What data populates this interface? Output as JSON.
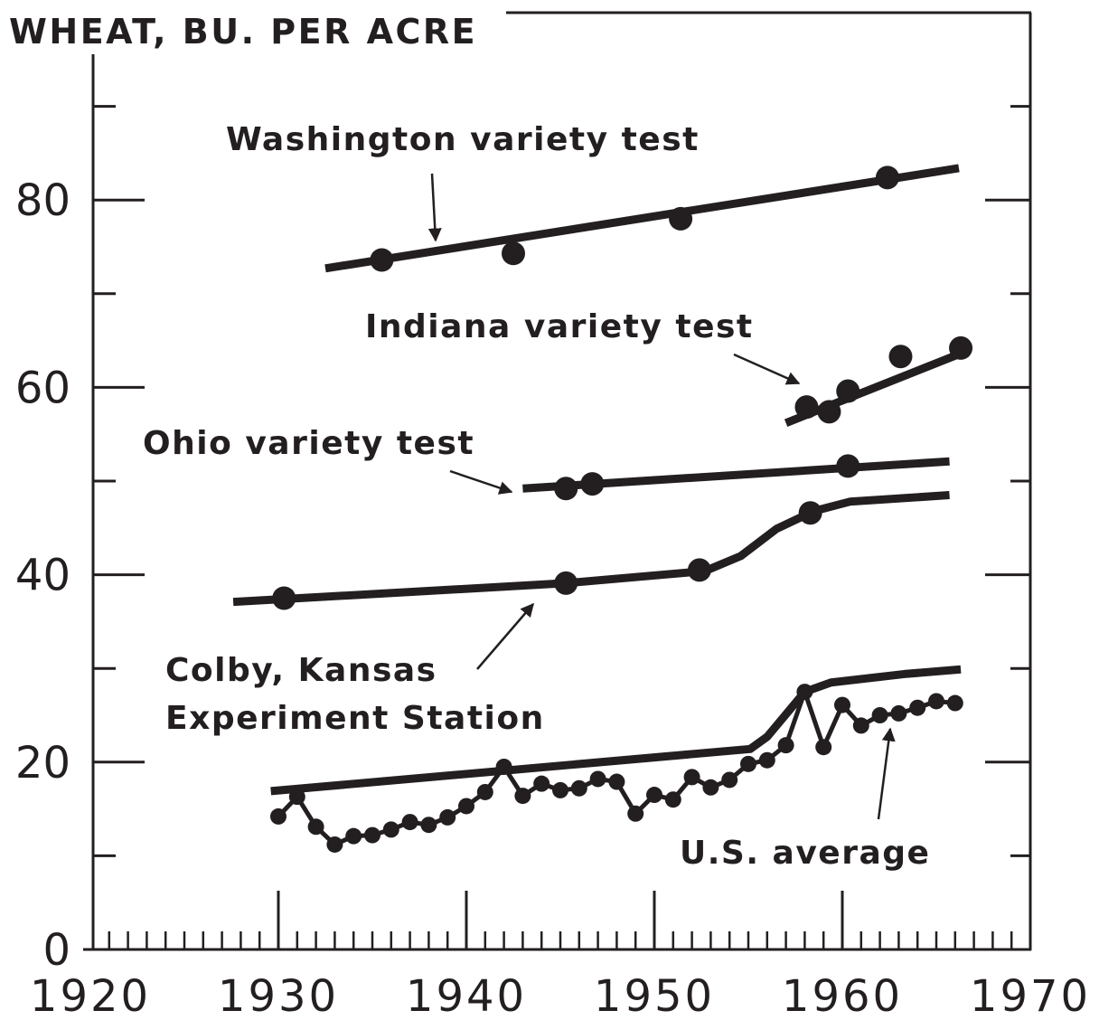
{
  "chart_data": {
    "type": "line",
    "title": "WHEAT, BU. PER ACRE",
    "xlim": [
      1920,
      1970
    ],
    "xticks": [
      1920,
      1930,
      1940,
      1950,
      1960,
      1970
    ],
    "xminor_ticks": [
      1921,
      1922,
      1923,
      1924,
      1925,
      1926,
      1927,
      1928,
      1929,
      1931,
      1932,
      1933,
      1934,
      1935,
      1936,
      1937,
      1938,
      1939,
      1941,
      1942,
      1943,
      1944,
      1945,
      1946,
      1947,
      1948,
      1949,
      1951,
      1952,
      1953,
      1954,
      1955,
      1956,
      1957,
      1958,
      1959,
      1961,
      1962,
      1963,
      1964,
      1965,
      1966,
      1967,
      1968,
      1969
    ],
    "ylim": [
      0,
      100
    ],
    "yticks": [
      0,
      20,
      40,
      60,
      80
    ],
    "yminor_ticks": [
      10,
      30,
      50,
      70,
      90
    ],
    "color": "#231f20",
    "series": [
      {
        "name": "Washington variety test",
        "x": [
          1935.5,
          1942.5,
          1951.4,
          1962.4
        ],
        "values": [
          73.6,
          74.3,
          78.0,
          82.4
        ],
        "trend": {
          "x": [
            1932.5,
            1966.2
          ],
          "values": [
            72.7,
            83.4
          ]
        }
      },
      {
        "name": "Indiana variety test",
        "x": [
          1958.1,
          1959.3,
          1960.3,
          1963.1,
          1966.3
        ],
        "values": [
          57.9,
          57.4,
          59.6,
          63.3,
          64.2
        ],
        "trend": {
          "x": [
            1957.0,
            1966.4
          ],
          "values": [
            56.2,
            63.7
          ]
        }
      },
      {
        "name": "Ohio variety test",
        "x": [
          1945.3,
          1946.7,
          1960.3
        ],
        "values": [
          49.2,
          49.7,
          51.6
        ],
        "trend": {
          "x": [
            1943.0,
            1965.7
          ],
          "values": [
            49.2,
            52.1
          ]
        }
      },
      {
        "name": "Colby, Kansas\nExperiment Station",
        "x": [
          1930.3,
          1945.3,
          1952.4,
          1958.3
        ],
        "values": [
          37.5,
          39.1,
          40.5,
          46.6
        ],
        "trend": {
          "x": [
            1927.6,
            1945.3,
            1952.7,
            1954.6,
            1956.5,
            1958.5,
            1960.4,
            1965.7
          ],
          "values": [
            37.1,
            39.1,
            40.4,
            42.0,
            44.9,
            46.8,
            47.8,
            48.5
          ]
        }
      },
      {
        "name": "U.S. average",
        "connected": true,
        "x": [
          1930,
          1931,
          1932,
          1933,
          1934,
          1935,
          1936,
          1937,
          1938,
          1939,
          1940,
          1941,
          1942,
          1943,
          1944,
          1945,
          1946,
          1947,
          1948,
          1949,
          1950,
          1951,
          1952,
          1953,
          1954,
          1955,
          1956,
          1957,
          1958,
          1959,
          1960,
          1961,
          1962,
          1963,
          1964,
          1965,
          1966
        ],
        "values": [
          14.2,
          16.3,
          13.1,
          11.2,
          12.1,
          12.2,
          12.8,
          13.6,
          13.3,
          14.1,
          15.3,
          16.8,
          19.5,
          16.4,
          17.7,
          17.0,
          17.2,
          18.2,
          17.9,
          14.5,
          16.5,
          16.0,
          18.4,
          17.3,
          18.1,
          19.8,
          20.2,
          21.8,
          27.5,
          21.6,
          26.1,
          23.9,
          25.0,
          25.2,
          25.8,
          26.5,
          26.3
        ],
        "trend": {
          "x": [
            1929.6,
            1955.1,
            1956.0,
            1957.0,
            1958.0,
            1959.4,
            1963.3,
            1966.3
          ],
          "values": [
            16.9,
            21.4,
            22.7,
            25.1,
            27.5,
            28.5,
            29.4,
            29.9
          ]
        }
      }
    ]
  }
}
